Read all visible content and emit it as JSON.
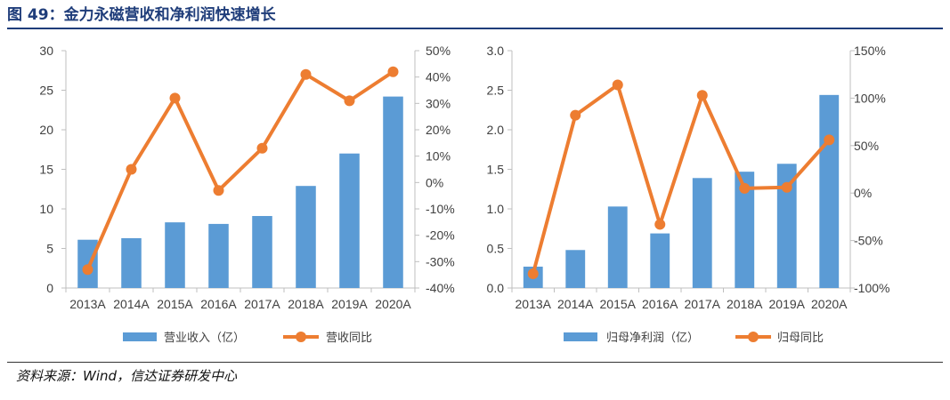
{
  "header": {
    "title": "图 49：金力永磁营收和净利润快速增长"
  },
  "footer": {
    "source": "资料来源：Wind，信达证券研发中心"
  },
  "colors": {
    "bar": "#5b9bd5",
    "line": "#ed7d31",
    "axis": "#bfbfbf",
    "text": "#404040",
    "title": "#1f3d7a"
  },
  "chart_data": [
    {
      "type": "bar+line",
      "categories": [
        "2013A",
        "2014A",
        "2015A",
        "2016A",
        "2017A",
        "2018A",
        "2019A",
        "2020A"
      ],
      "series": [
        {
          "name": "营业收入（亿）",
          "kind": "bar",
          "axis": "left",
          "values": [
            6.1,
            6.3,
            8.3,
            8.1,
            9.1,
            12.9,
            17.0,
            24.2
          ]
        },
        {
          "name": "营收同比",
          "kind": "line",
          "axis": "right",
          "values": [
            -33,
            5,
            32,
            -3,
            13,
            41,
            31,
            42
          ]
        }
      ],
      "left_axis": {
        "min": 0,
        "max": 30,
        "ticks": [
          "0",
          "5",
          "10",
          "15",
          "20",
          "25",
          "30"
        ]
      },
      "right_axis": {
        "min": -40,
        "max": 50,
        "ticks": [
          "-40%",
          "-30%",
          "-20%",
          "-10%",
          "0%",
          "10%",
          "20%",
          "30%",
          "40%",
          "50%"
        ]
      },
      "legend": {
        "position": "bottom"
      }
    },
    {
      "type": "bar+line",
      "categories": [
        "2013A",
        "2014A",
        "2015A",
        "2016A",
        "2017A",
        "2018A",
        "2019A",
        "2020A"
      ],
      "series": [
        {
          "name": "归母净利润（亿）",
          "kind": "bar",
          "axis": "left",
          "values": [
            0.27,
            0.48,
            1.03,
            0.69,
            1.39,
            1.47,
            1.57,
            2.44
          ]
        },
        {
          "name": "归母同比",
          "kind": "line",
          "axis": "right",
          "values": [
            -85,
            82,
            114,
            -33,
            103,
            5,
            6,
            56
          ]
        }
      ],
      "left_axis": {
        "min": 0,
        "max": 3,
        "ticks": [
          "0.0",
          "0.5",
          "1.0",
          "1.5",
          "2.0",
          "2.5",
          "3.0"
        ]
      },
      "right_axis": {
        "min": -100,
        "max": 150,
        "ticks": [
          "-100%",
          "-50%",
          "0%",
          "50%",
          "100%",
          "150%"
        ]
      },
      "legend": {
        "position": "bottom"
      }
    }
  ]
}
